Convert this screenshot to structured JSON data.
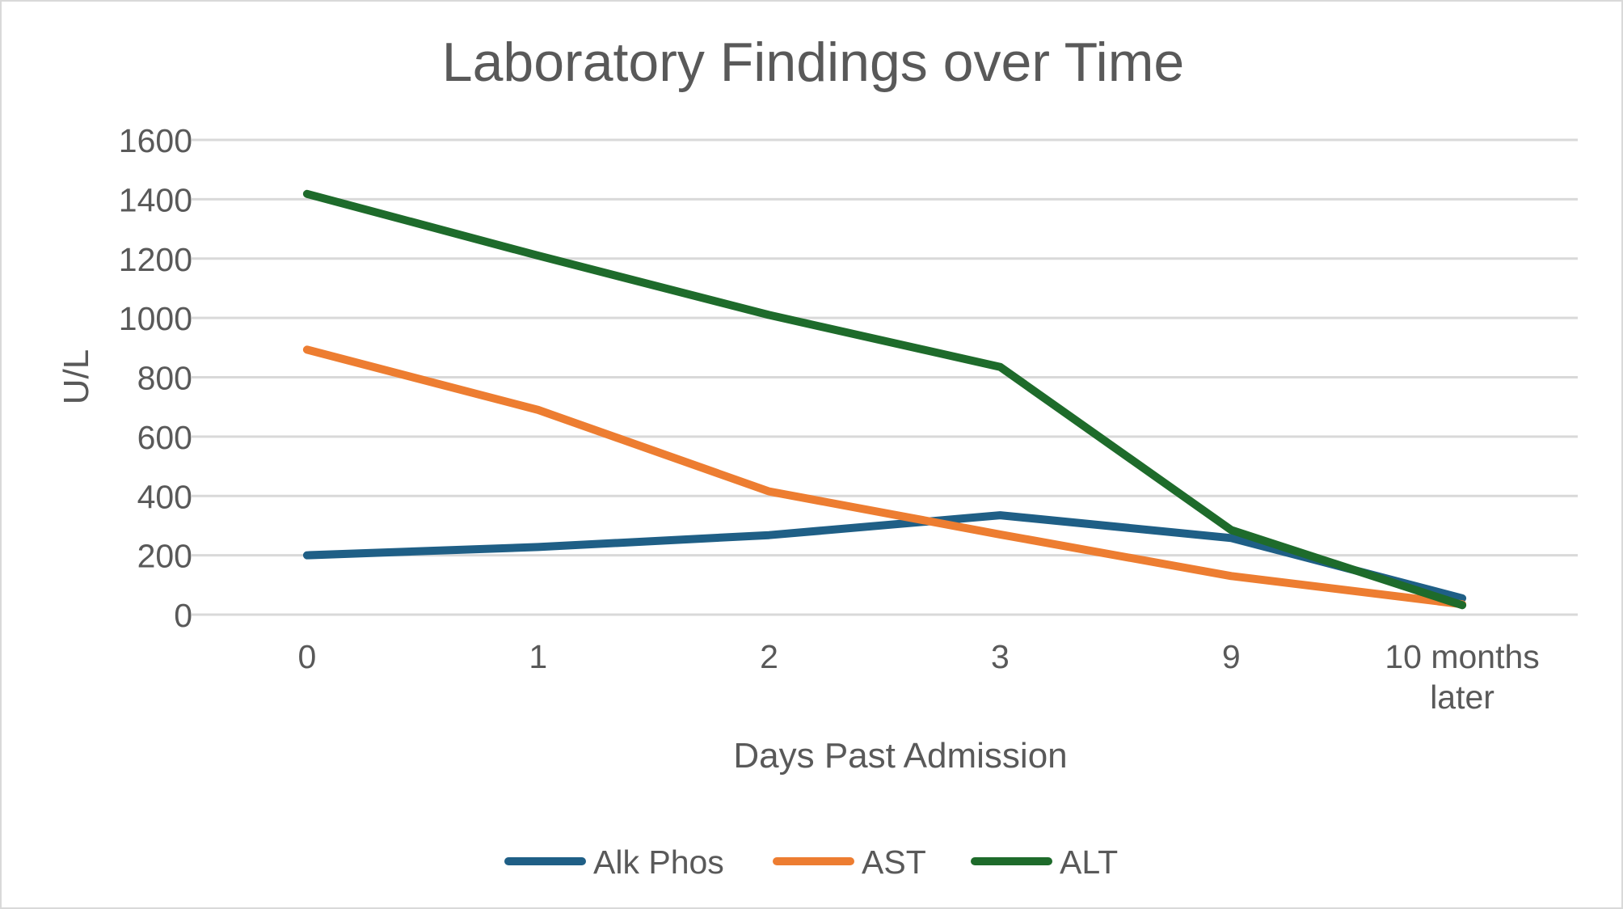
{
  "chart_data": {
    "type": "line",
    "title": "Laboratory Findings over Time",
    "xlabel": "Days Past Admission",
    "ylabel": "U/L",
    "categories": [
      [
        "0"
      ],
      [
        "1"
      ],
      [
        "2"
      ],
      [
        "3"
      ],
      [
        "9"
      ],
      [
        "10 months",
        "later"
      ]
    ],
    "ylim": [
      0,
      1600
    ],
    "yticks": [
      0,
      200,
      400,
      600,
      800,
      1000,
      1200,
      1400,
      1600
    ],
    "grid": true,
    "legend_position": "bottom",
    "series": [
      {
        "name": "Alk Phos",
        "color": "#1f5f86",
        "values": [
          200,
          228,
          268,
          335,
          258,
          55
        ]
      },
      {
        "name": "AST",
        "color": "#ed7d31",
        "values": [
          893,
          690,
          415,
          270,
          130,
          35
        ]
      },
      {
        "name": "ALT",
        "color": "#1e6b2b",
        "values": [
          1418,
          1210,
          1010,
          835,
          285,
          32
        ]
      }
    ]
  }
}
